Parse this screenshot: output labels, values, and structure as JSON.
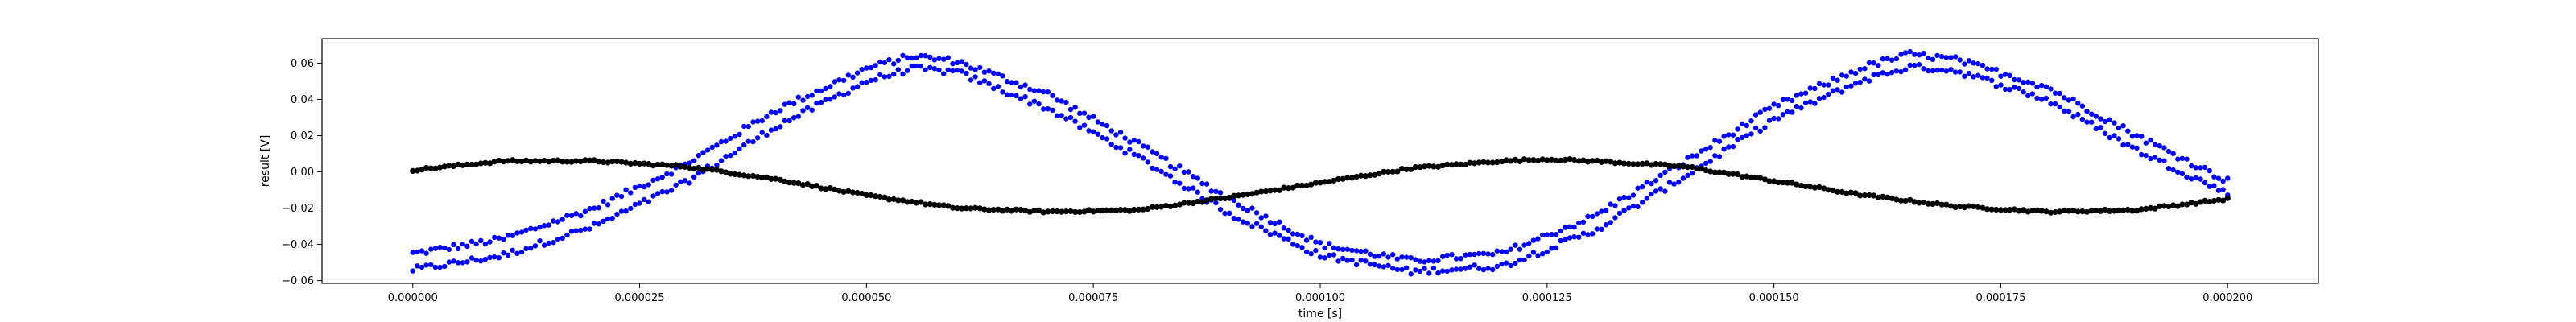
{
  "chart_data": {
    "type": "scatter",
    "title": "",
    "xlabel": "time [s]",
    "ylabel": "result [V]",
    "xlim": [
      -1e-05,
      0.00021
    ],
    "ylim": [
      -0.0615,
      0.0735
    ],
    "grid": false,
    "x_ticks": [
      0,
      2.5e-05,
      5e-05,
      7.5e-05,
      0.0001,
      0.000125,
      0.00015,
      0.000175,
      0.0002
    ],
    "x_tick_labels": [
      "0.000000",
      "0.000025",
      "0.000050",
      "0.000075",
      "0.000100",
      "0.000125",
      "0.000150",
      "0.000175",
      "0.000200"
    ],
    "y_ticks": [
      -0.06,
      -0.04,
      -0.02,
      0.0,
      0.02,
      0.04,
      0.06
    ],
    "y_tick_labels": [
      "−0.06",
      "−0.04",
      "−0.02",
      "0.00",
      "0.02",
      "0.04",
      "0.06"
    ],
    "series": [
      {
        "color": "#0000ff",
        "marker": "dot",
        "x": [
          0,
          1e-05,
          2e-05,
          3e-05,
          4e-05,
          5e-05,
          5.5e-05,
          6e-05,
          7e-05,
          8e-05,
          9e-05,
          0.0001,
          0.00011,
          0.00012,
          0.00013,
          0.00014,
          0.00015,
          0.00016,
          0.000165,
          0.00017,
          0.00018,
          0.00019,
          0.0002
        ],
        "y_upper": [
          -0.045,
          -0.037,
          -0.02,
          0.004,
          0.034,
          0.057,
          0.064,
          0.061,
          0.043,
          0.015,
          -0.015,
          -0.04,
          -0.049,
          -0.045,
          -0.025,
          0.005,
          0.036,
          0.058,
          0.065,
          0.062,
          0.047,
          0.02,
          -0.005
        ],
        "y_lower": [
          -0.054,
          -0.046,
          -0.03,
          -0.006,
          0.025,
          0.05,
          0.057,
          0.055,
          0.035,
          0.008,
          -0.023,
          -0.046,
          -0.055,
          -0.052,
          -0.033,
          -0.003,
          0.029,
          0.051,
          0.058,
          0.056,
          0.04,
          0.012,
          -0.012
        ]
      },
      {
        "color": "#000000",
        "marker": "dot",
        "x": [
          0,
          1e-05,
          2e-05,
          3e-05,
          4e-05,
          5e-05,
          6e-05,
          7e-05,
          8e-05,
          9e-05,
          0.0001,
          0.00011,
          0.00012,
          0.000125,
          0.00013,
          0.00014,
          0.00015,
          0.00016,
          0.00017,
          0.00018,
          0.00019,
          0.0002
        ],
        "y": [
          0.001,
          0.006,
          0.006,
          0.003,
          -0.004,
          -0.013,
          -0.02,
          -0.022,
          -0.021,
          -0.014,
          -0.006,
          0.002,
          0.006,
          0.007,
          0.006,
          0.003,
          -0.005,
          -0.013,
          -0.019,
          -0.022,
          -0.021,
          -0.015
        ]
      }
    ]
  }
}
